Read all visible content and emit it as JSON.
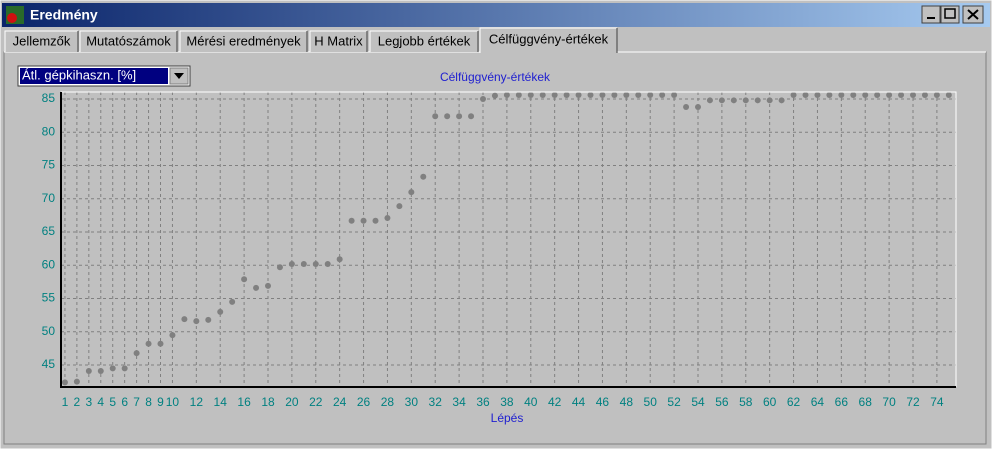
{
  "window": {
    "title": "Eredmény"
  },
  "tabs": [
    "Jellemzők",
    "Mutatószámok",
    "Mérési eredmények",
    "H Matrix",
    "Legjobb értékek",
    "Célfüggvény-értékek"
  ],
  "dropdown": {
    "selected": "Átl. gépkihaszn. [%]"
  },
  "chart_data": {
    "type": "scatter",
    "title": "Célfüggvény-értékek",
    "x_label": "Lépés",
    "x": [
      1,
      2,
      3,
      4,
      5,
      6,
      7,
      8,
      9,
      10,
      11,
      12,
      13,
      14,
      15,
      16,
      17,
      18,
      19,
      20,
      21,
      22,
      23,
      24,
      25,
      26,
      27,
      28,
      29,
      30,
      31,
      32,
      33,
      34,
      35,
      36,
      37,
      38,
      39,
      40,
      41,
      42,
      43,
      44,
      45,
      46,
      47,
      48,
      49,
      50,
      51,
      52,
      53,
      54,
      55,
      56,
      57,
      58,
      59,
      60,
      61,
      62,
      63,
      64,
      65,
      66,
      67,
      68,
      69,
      70,
      71,
      72,
      73,
      74,
      75
    ],
    "series": [
      {
        "color": "#808080",
        "values": [
          42.4,
          42.5,
          44.1,
          44.1,
          44.5,
          44.5,
          46.8,
          48.2,
          48.2,
          49.5,
          51.9,
          51.6,
          51.8,
          53.0,
          54.5,
          57.9,
          56.6,
          56.9,
          59.7,
          60.2,
          60.2,
          60.2,
          60.2,
          60.9,
          66.7,
          66.7,
          66.7,
          67.1,
          68.9,
          71.0,
          73.3,
          82.4,
          82.4,
          82.4,
          82.4,
          85.0,
          85.5,
          85.6,
          85.6,
          85.6,
          85.6,
          85.6,
          85.6,
          85.6,
          85.6,
          85.6,
          85.6,
          85.6,
          85.6,
          85.6,
          85.6,
          85.6,
          83.8,
          83.8,
          84.8,
          84.8,
          84.8,
          84.8,
          84.8,
          84.8,
          84.8,
          85.6,
          85.6,
          85.6,
          85.6,
          85.6,
          85.6,
          85.6,
          85.6,
          85.6,
          85.6,
          85.6,
          85.6,
          85.6,
          85.6
        ]
      }
    ],
    "xlim": [
      0.67,
      75.6
    ],
    "ylim": [
      41.7,
      86.05
    ],
    "xticks": [
      1,
      2,
      3,
      4,
      5,
      6,
      7,
      8,
      9,
      10,
      12,
      14,
      16,
      18,
      20,
      22,
      24,
      26,
      28,
      30,
      32,
      34,
      36,
      38,
      40,
      42,
      44,
      46,
      48,
      50,
      52,
      54,
      56,
      58,
      60,
      62,
      64,
      66,
      68,
      70,
      72,
      74
    ],
    "yticks": [
      45,
      50,
      55,
      60,
      65,
      70,
      75,
      80,
      85
    ],
    "grid": true
  }
}
